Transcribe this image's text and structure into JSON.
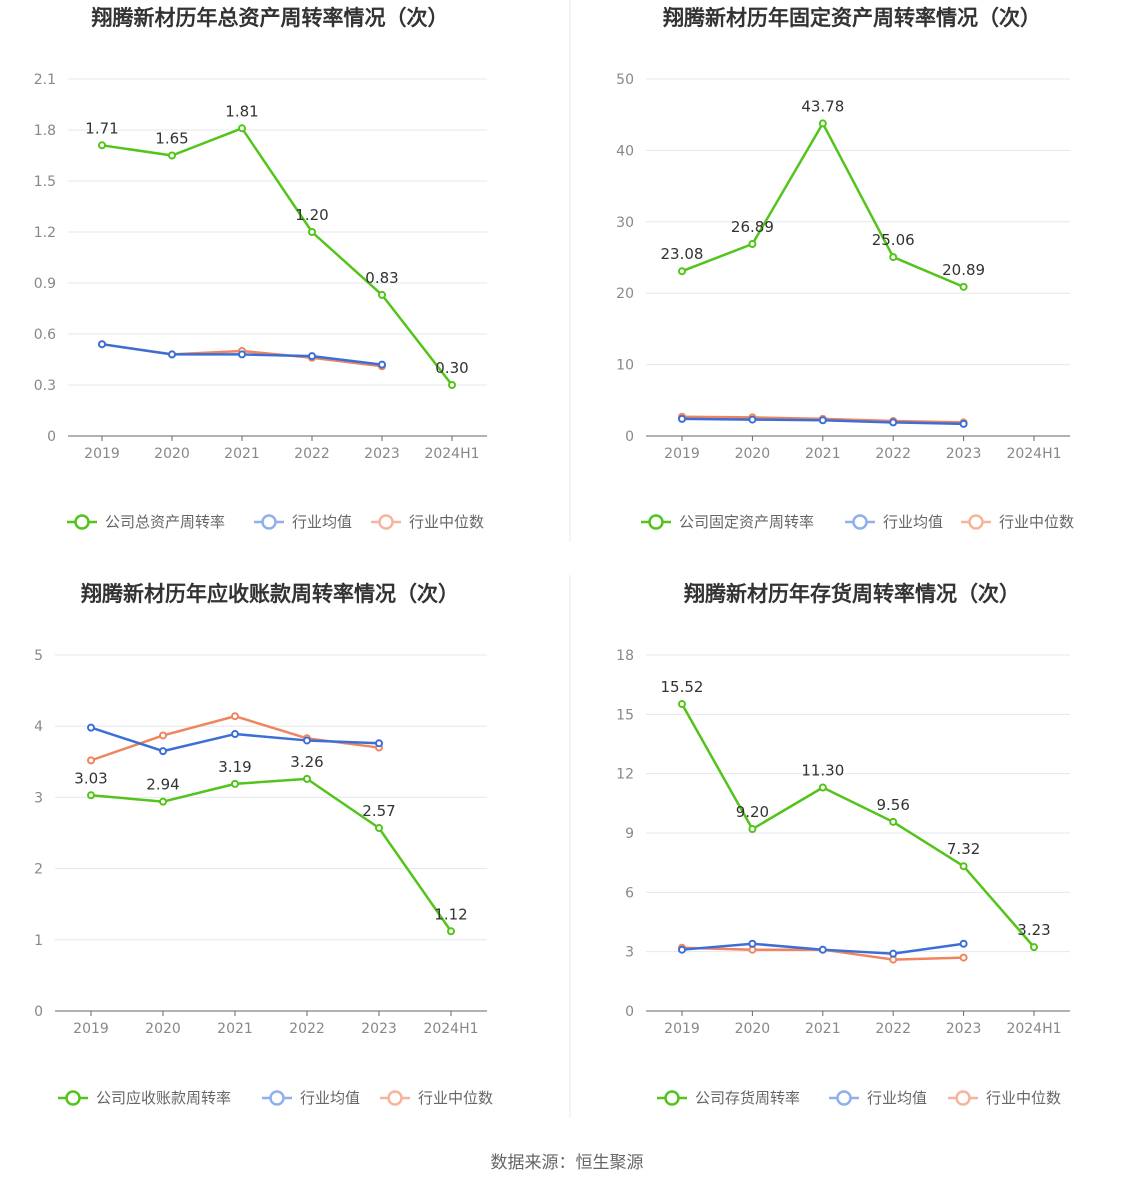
{
  "source": "数据来源：恒生聚源",
  "colors": {
    "company": "#52c41a",
    "avg": "#3c6fd6",
    "median": "#f0845f",
    "grid": "#e6e6ef",
    "axis": "#666666"
  },
  "chart_data": [
    {
      "type": "line",
      "title": "翔腾新材历年总资产周转率情况（次）",
      "categories": [
        "2019",
        "2020",
        "2021",
        "2022",
        "2023",
        "2024H1"
      ],
      "ylim": [
        0,
        2.1
      ],
      "yticks": [
        "0",
        "0.3",
        "0.6",
        "0.9",
        "1.2",
        "1.5",
        "1.8",
        "2.1"
      ],
      "grid": true,
      "legend_position": "bottom",
      "series": [
        {
          "name": "公司总资产周转率",
          "values": [
            1.71,
            1.65,
            1.81,
            1.2,
            0.83,
            0.3
          ],
          "labels": [
            "1.71",
            "1.65",
            "1.81",
            "1.20",
            "0.83",
            "0.30"
          ]
        },
        {
          "name": "行业均值",
          "values": [
            0.54,
            0.48,
            0.48,
            0.47,
            0.42,
            null
          ]
        },
        {
          "name": "行业中位数",
          "values": [
            0.54,
            0.48,
            0.5,
            0.46,
            0.41,
            null
          ]
        }
      ]
    },
    {
      "type": "line",
      "title": "翔腾新材历年固定资产周转率情况（次）",
      "categories": [
        "2019",
        "2020",
        "2021",
        "2022",
        "2023",
        "2024H1"
      ],
      "ylim": [
        0,
        50
      ],
      "yticks": [
        "0",
        "10",
        "20",
        "30",
        "40",
        "50"
      ],
      "grid": true,
      "legend_position": "bottom",
      "series": [
        {
          "name": "公司固定资产周转率",
          "values": [
            23.08,
            26.89,
            43.78,
            25.06,
            20.89,
            null
          ],
          "labels": [
            "23.08",
            "26.89",
            "43.78",
            "25.06",
            "20.89",
            ""
          ]
        },
        {
          "name": "行业均值",
          "values": [
            2.4,
            2.3,
            2.2,
            1.9,
            1.7,
            null
          ]
        },
        {
          "name": "行业中位数",
          "values": [
            2.7,
            2.6,
            2.4,
            2.1,
            1.9,
            null
          ]
        }
      ]
    },
    {
      "type": "line",
      "title": "翔腾新材历年应收账款周转率情况（次）",
      "categories": [
        "2019",
        "2020",
        "2021",
        "2022",
        "2023",
        "2024H1"
      ],
      "ylim": [
        0,
        5
      ],
      "yticks": [
        "0",
        "1",
        "2",
        "3",
        "4",
        "5"
      ],
      "grid": true,
      "legend_position": "bottom",
      "series": [
        {
          "name": "公司应收账款周转率",
          "values": [
            3.03,
            2.94,
            3.19,
            3.26,
            2.57,
            1.12
          ],
          "labels": [
            "3.03",
            "2.94",
            "3.19",
            "3.26",
            "2.57",
            "1.12"
          ]
        },
        {
          "name": "行业均值",
          "values": [
            3.98,
            3.65,
            3.89,
            3.8,
            3.76,
            null
          ]
        },
        {
          "name": "行业中位数",
          "values": [
            3.52,
            3.87,
            4.14,
            3.83,
            3.7,
            null
          ]
        }
      ]
    },
    {
      "type": "line",
      "title": "翔腾新材历年存货周转率情况（次）",
      "categories": [
        "2019",
        "2020",
        "2021",
        "2022",
        "2023",
        "2024H1"
      ],
      "ylim": [
        0,
        18
      ],
      "yticks": [
        "0",
        "3",
        "6",
        "9",
        "12",
        "15",
        "18"
      ],
      "grid": true,
      "legend_position": "bottom",
      "series": [
        {
          "name": "公司存货周转率",
          "values": [
            15.52,
            9.2,
            11.3,
            9.56,
            7.32,
            3.23
          ],
          "labels": [
            "15.52",
            "9.20",
            "11.30",
            "9.56",
            "7.32",
            "3.23"
          ]
        },
        {
          "name": "行业均值",
          "values": [
            3.1,
            3.4,
            3.1,
            2.9,
            3.4,
            null
          ]
        },
        {
          "name": "行业中位数",
          "values": [
            3.2,
            3.1,
            3.1,
            2.6,
            2.7,
            null
          ]
        }
      ]
    }
  ]
}
